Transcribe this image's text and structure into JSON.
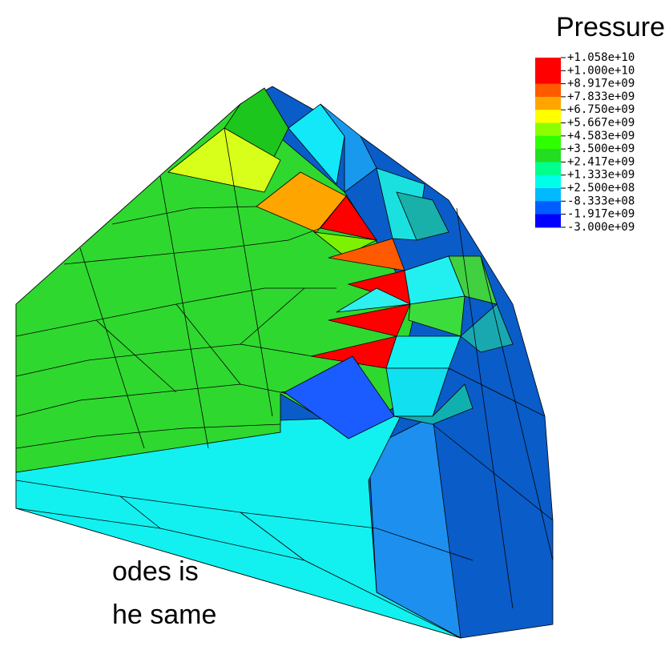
{
  "title": "Pressure",
  "legend": {
    "labels": [
      "+1.058e+10",
      "+1.000e+10",
      "+8.917e+09",
      "+7.833e+09",
      "+6.750e+09",
      "+5.667e+09",
      "+4.583e+09",
      "+3.500e+09",
      "+2.417e+09",
      "+1.333e+09",
      "+2.500e+08",
      "-8.333e+08",
      "-1.917e+09",
      "-3.000e+09"
    ]
  },
  "caption": {
    "lines": [
      "odes is",
      "he same"
    ]
  }
}
